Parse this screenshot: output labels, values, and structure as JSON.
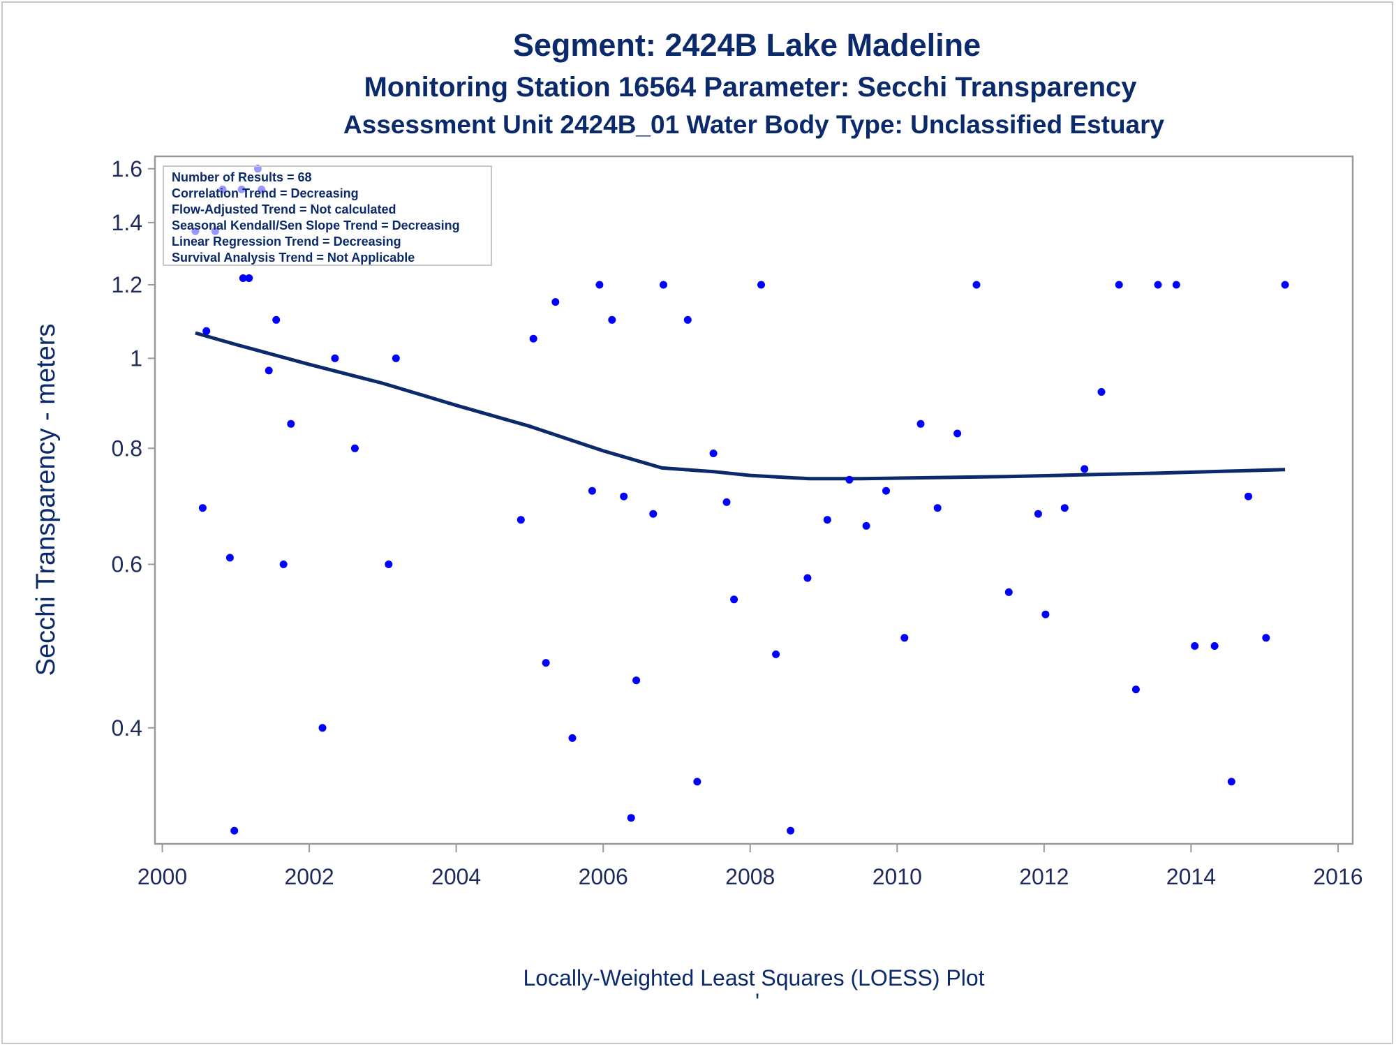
{
  "chart_data": {
    "type": "scatter",
    "title": "Segment: 2424B  Lake Madeline",
    "subtitle": "Monitoring Station 16564 Parameter: Secchi Transparency",
    "subtitle2": "Assessment Unit 2424B_01   Water Body Type: Unclassified Estuary",
    "ylabel": "Secchi Transparency - meters",
    "xlabel": "Locally-Weighted Least Squares (LOESS) Plot",
    "footnote": "'",
    "yscale": "log",
    "xlim": [
      1999.9,
      2016.2
    ],
    "ylim": [
      0.3,
      1.65
    ],
    "x_ticks": [
      "2000",
      "2002",
      "2004",
      "2006",
      "2008",
      "2010",
      "2012",
      "2014",
      "2016"
    ],
    "y_ticks": [
      "0.4",
      "0.6",
      "0.8",
      "1",
      "1.2",
      "1.4",
      "1.6"
    ],
    "legend_placement": "top-left",
    "legend": [
      "Number of Results = 68",
      "Correlation Trend = Decreasing",
      "Flow-Adjusted Trend = Not calculated",
      "Seasonal Kendall/Sen Slope Trend = Decreasing",
      "Linear Regression Trend = Decreasing",
      "Survival Analysis Trend = Not Applicable"
    ],
    "colors": {
      "points": "#0000ff",
      "loess_line": "#0b2a6b",
      "text": "#0b2a6b",
      "axis": "#999999"
    },
    "points": [
      {
        "x": 2000.45,
        "y": 1.37
      },
      {
        "x": 2000.55,
        "y": 0.69
      },
      {
        "x": 2000.6,
        "y": 1.07
      },
      {
        "x": 2000.72,
        "y": 1.37
      },
      {
        "x": 2000.82,
        "y": 1.52
      },
      {
        "x": 2000.92,
        "y": 0.61
      },
      {
        "x": 2000.98,
        "y": 0.31
      },
      {
        "x": 2001.08,
        "y": 1.52
      },
      {
        "x": 2001.1,
        "y": 1.22
      },
      {
        "x": 2001.18,
        "y": 1.22
      },
      {
        "x": 2001.3,
        "y": 1.6
      },
      {
        "x": 2001.35,
        "y": 1.52
      },
      {
        "x": 2001.45,
        "y": 0.97
      },
      {
        "x": 2001.55,
        "y": 1.1
      },
      {
        "x": 2001.65,
        "y": 0.6
      },
      {
        "x": 2001.75,
        "y": 0.85
      },
      {
        "x": 2002.18,
        "y": 0.4
      },
      {
        "x": 2002.35,
        "y": 1.0
      },
      {
        "x": 2002.62,
        "y": 0.8
      },
      {
        "x": 2003.08,
        "y": 0.6
      },
      {
        "x": 2003.18,
        "y": 1.0
      },
      {
        "x": 2004.88,
        "y": 0.67
      },
      {
        "x": 2005.05,
        "y": 1.05
      },
      {
        "x": 2005.22,
        "y": 0.47
      },
      {
        "x": 2005.35,
        "y": 1.15
      },
      {
        "x": 2005.58,
        "y": 0.39
      },
      {
        "x": 2005.85,
        "y": 0.72
      },
      {
        "x": 2005.95,
        "y": 1.2
      },
      {
        "x": 2006.12,
        "y": 1.1
      },
      {
        "x": 2006.28,
        "y": 0.71
      },
      {
        "x": 2006.38,
        "y": 0.32
      },
      {
        "x": 2006.45,
        "y": 0.45
      },
      {
        "x": 2006.68,
        "y": 0.68
      },
      {
        "x": 2006.82,
        "y": 1.2
      },
      {
        "x": 2007.15,
        "y": 1.1
      },
      {
        "x": 2007.28,
        "y": 0.35
      },
      {
        "x": 2007.5,
        "y": 0.79
      },
      {
        "x": 2007.68,
        "y": 0.7
      },
      {
        "x": 2007.78,
        "y": 0.55
      },
      {
        "x": 2008.15,
        "y": 1.2
      },
      {
        "x": 2008.35,
        "y": 0.48
      },
      {
        "x": 2008.55,
        "y": 0.31
      },
      {
        "x": 2008.78,
        "y": 0.58
      },
      {
        "x": 2009.05,
        "y": 0.67
      },
      {
        "x": 2009.35,
        "y": 0.74
      },
      {
        "x": 2009.58,
        "y": 0.66
      },
      {
        "x": 2009.85,
        "y": 0.72
      },
      {
        "x": 2010.1,
        "y": 0.5
      },
      {
        "x": 2010.32,
        "y": 0.85
      },
      {
        "x": 2010.55,
        "y": 0.69
      },
      {
        "x": 2010.82,
        "y": 0.83
      },
      {
        "x": 2011.08,
        "y": 1.2
      },
      {
        "x": 2011.52,
        "y": 0.56
      },
      {
        "x": 2011.92,
        "y": 0.68
      },
      {
        "x": 2012.02,
        "y": 0.53
      },
      {
        "x": 2012.28,
        "y": 0.69
      },
      {
        "x": 2012.55,
        "y": 0.76
      },
      {
        "x": 2012.78,
        "y": 0.92
      },
      {
        "x": 2013.02,
        "y": 1.2
      },
      {
        "x": 2013.25,
        "y": 0.44
      },
      {
        "x": 2013.55,
        "y": 1.2
      },
      {
        "x": 2013.8,
        "y": 1.2
      },
      {
        "x": 2014.05,
        "y": 0.49
      },
      {
        "x": 2014.32,
        "y": 0.49
      },
      {
        "x": 2014.55,
        "y": 0.35
      },
      {
        "x": 2014.78,
        "y": 0.71
      },
      {
        "x": 2015.02,
        "y": 0.5
      },
      {
        "x": 2015.28,
        "y": 1.2
      }
    ],
    "loess_line": [
      {
        "x": 2000.45,
        "y": 1.065
      },
      {
        "x": 2001.0,
        "y": 1.035
      },
      {
        "x": 2002.0,
        "y": 0.985
      },
      {
        "x": 2003.0,
        "y": 0.94
      },
      {
        "x": 2004.0,
        "y": 0.89
      },
      {
        "x": 2005.0,
        "y": 0.845
      },
      {
        "x": 2006.0,
        "y": 0.795
      },
      {
        "x": 2006.8,
        "y": 0.762
      },
      {
        "x": 2007.5,
        "y": 0.755
      },
      {
        "x": 2008.0,
        "y": 0.748
      },
      {
        "x": 2008.8,
        "y": 0.742
      },
      {
        "x": 2009.5,
        "y": 0.742
      },
      {
        "x": 2010.5,
        "y": 0.744
      },
      {
        "x": 2011.5,
        "y": 0.746
      },
      {
        "x": 2012.5,
        "y": 0.749
      },
      {
        "x": 2013.5,
        "y": 0.752
      },
      {
        "x": 2014.5,
        "y": 0.756
      },
      {
        "x": 2015.28,
        "y": 0.759
      }
    ]
  }
}
